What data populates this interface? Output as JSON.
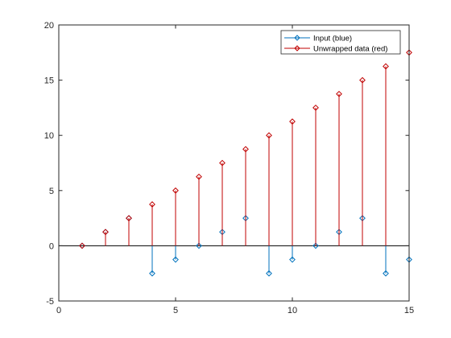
{
  "chart_data": {
    "type": "stem",
    "title": "",
    "xlabel": "",
    "ylabel": "",
    "xlim": [
      0,
      15
    ],
    "ylim": [
      -5,
      20
    ],
    "xticks": [
      0,
      5,
      10,
      15
    ],
    "yticks": [
      -5,
      0,
      5,
      10,
      15,
      20
    ],
    "grid": false,
    "legend_position": "top-right",
    "series": [
      {
        "name": "Input (blue)",
        "color": "#0072BD",
        "marker": "diamond",
        "x": [
          1,
          2,
          3,
          4,
          5,
          6,
          7,
          8,
          9,
          10,
          11,
          12,
          13,
          14,
          15
        ],
        "values": [
          0,
          1.25,
          2.5,
          -2.5,
          -1.25,
          0,
          1.25,
          2.5,
          -2.5,
          -1.25,
          0,
          1.25,
          2.5,
          -2.5,
          -1.25
        ]
      },
      {
        "name": "Unwrapped data (red)",
        "color": "#C00000",
        "marker": "diamond",
        "x": [
          1,
          2,
          3,
          4,
          5,
          6,
          7,
          8,
          9,
          10,
          11,
          12,
          13,
          14,
          15
        ],
        "values": [
          0,
          1.25,
          2.5,
          3.75,
          5.0,
          6.25,
          7.5,
          8.75,
          10.0,
          11.25,
          12.5,
          13.75,
          15.0,
          16.25,
          17.5
        ]
      }
    ]
  }
}
